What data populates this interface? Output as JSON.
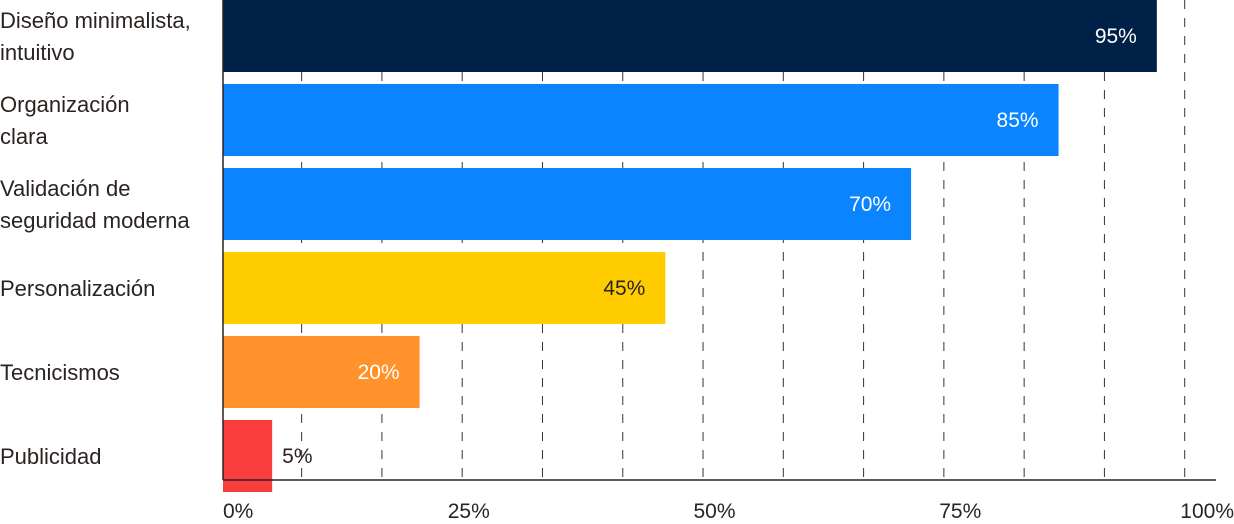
{
  "chart_data": {
    "type": "bar",
    "orientation": "horizontal",
    "title": "",
    "xlabel": "",
    "ylabel": "",
    "xlim": [
      0,
      100
    ],
    "grid": "vertical dashed",
    "categories": [
      [
        "Diseño minimalista,",
        "intuitivo"
      ],
      [
        "Organización",
        "clara"
      ],
      [
        "Validación de",
        "seguridad moderna"
      ],
      [
        "Personalización"
      ],
      [
        "Tecnicismos"
      ],
      [
        "Publicidad"
      ]
    ],
    "values": [
      95,
      85,
      70,
      45,
      20,
      5
    ],
    "value_labels": [
      "95%",
      "85%",
      "70%",
      "45%",
      "20%",
      "5%"
    ],
    "colors": [
      "#002147",
      "#0a84ff",
      "#0a84ff",
      "#ffcc00",
      "#ff922b",
      "#fa3e3e"
    ],
    "label_colors": [
      "#ffffff",
      "#ffffff",
      "#ffffff",
      "#2a2320",
      "#ffffff",
      "#2a2320"
    ],
    "ticks": [
      0,
      25,
      50,
      75,
      100
    ],
    "tick_labels": [
      "0%",
      "25%",
      "50%",
      "75%",
      "100%"
    ],
    "legend": "none"
  }
}
